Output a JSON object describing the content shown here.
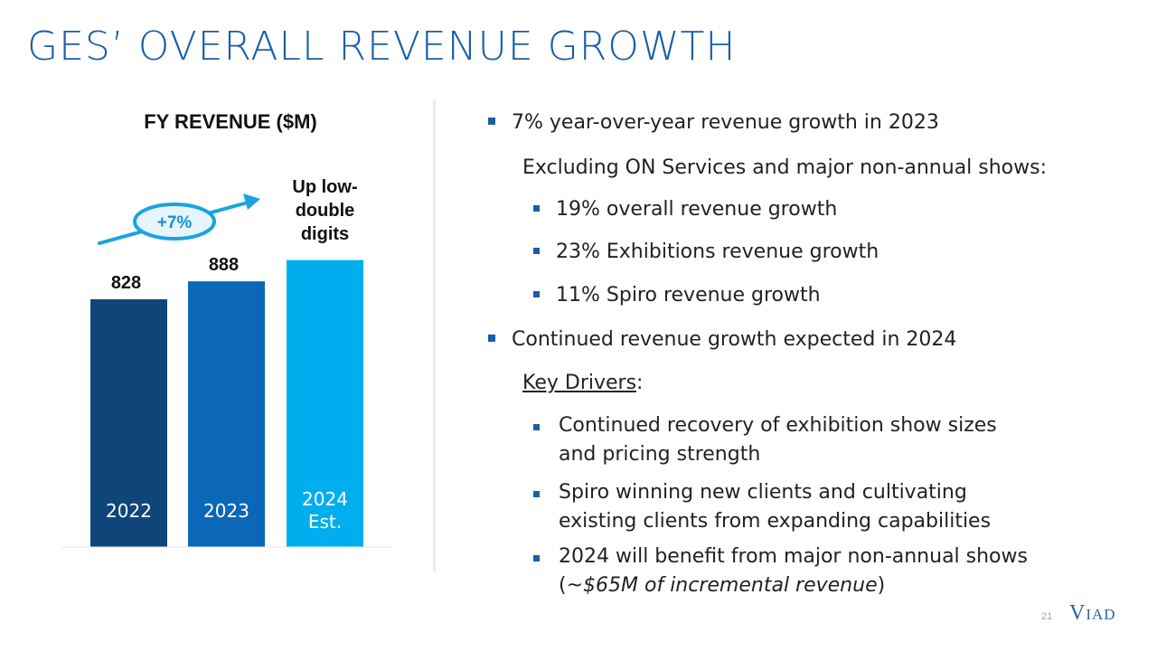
{
  "page": {
    "title": "GES’ OVERALL REVENUE GROWTH",
    "page_number": "21",
    "logo": "VIAD"
  },
  "colors": {
    "title": "#1a5ea8",
    "bar_2022": "#0f467a",
    "bar_2023": "#0b67b8",
    "bar_2024": "#00aeef",
    "arrow": "#1aa3e0",
    "bullet": "#1a5ea8"
  },
  "chart_data": {
    "type": "bar",
    "title": "FY REVENUE ($M)",
    "categories": [
      "2022",
      "2023",
      "2024 Est."
    ],
    "values": [
      828,
      888,
      null
    ],
    "estimated_value_note": "Up low-double digits",
    "value_labels": [
      "828",
      "888",
      "Up low-double digits"
    ],
    "growth_annotation": "+7%",
    "xlabel": "",
    "ylabel": ""
  },
  "bullets": {
    "b1": "7% year-over-year revenue growth in 2023",
    "b1_sub": "Excluding ON Services and major non-annual shows:",
    "b1_items": [
      "19% overall revenue growth",
      "23% Exhibitions revenue growth",
      "11% Spiro revenue growth"
    ],
    "b2": "Continued revenue growth expected in 2024",
    "b2_sub": "Key Drivers",
    "b2_sub_colon": ":",
    "b2_items": [
      "Continued recovery of exhibition show sizes and pricing strength",
      "Spiro winning new clients and cultivating existing clients from expanding capabilities"
    ],
    "b2_last_prefix": "2024 will benefit from major non-annual shows",
    "b2_last_paren_open": "(~",
    "b2_last_italic": "$65M of incremental revenue",
    "b2_last_paren_close": ")"
  }
}
